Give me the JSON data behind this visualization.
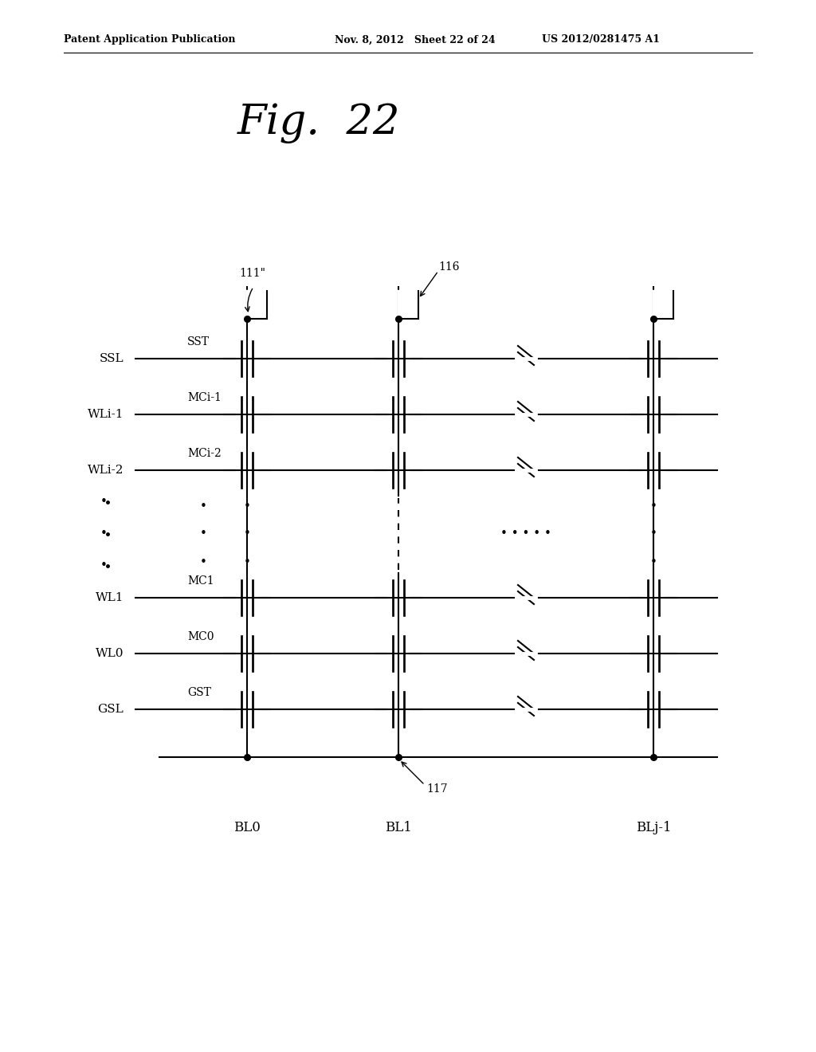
{
  "title": "Fig.  22",
  "header_left": "Patent Application Publication",
  "header_mid": "Nov. 8, 2012   Sheet 22 of 24",
  "header_right": "US 2012/0281475 A1",
  "background_color": "#ffffff",
  "line_color": "#000000",
  "row_labels": [
    "SSL",
    "WLi-1",
    "WLi-2",
    "WL1",
    "WL0",
    "GSL"
  ],
  "cell_labels": [
    "SST",
    "MCi-1",
    "MCi-2",
    "MC1",
    "MC0",
    "GST"
  ],
  "bl_labels": [
    "BL0",
    "BL1",
    "BLj-1"
  ],
  "annotation_111": "111\"",
  "annotation_116": "116",
  "annotation_117": "117"
}
